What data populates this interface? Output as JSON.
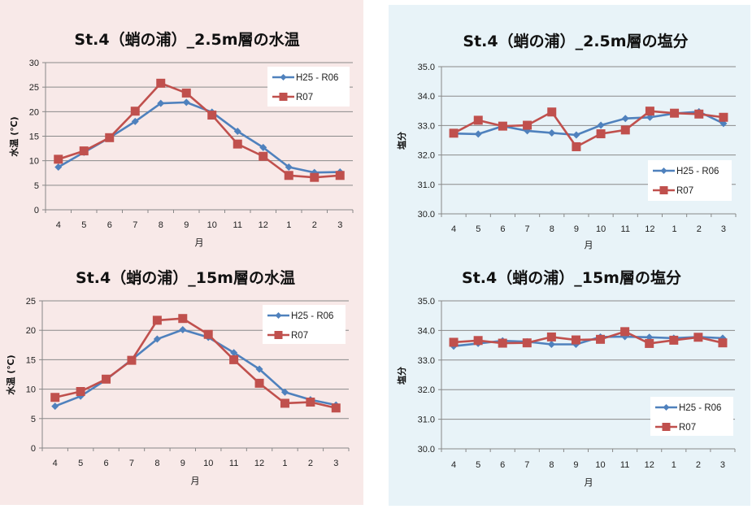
{
  "colors": {
    "series_blue": "#4f81bd",
    "series_red": "#c0504d",
    "panel_temp_bg": "#f8e9e8",
    "panel_sal_bg": "#e8f3f8"
  },
  "chart_data": [
    {
      "id": "temp-2-5m",
      "type": "line",
      "title": "St.4（蛸の浦）_2.5m層の水温",
      "xlabel": "月",
      "ylabel": "水温 (℃)",
      "categories": [
        "4",
        "5",
        "6",
        "7",
        "8",
        "9",
        "10",
        "11",
        "12",
        "1",
        "2",
        "3"
      ],
      "ylim": [
        0,
        30
      ],
      "yticks": [
        0,
        5,
        10,
        15,
        20,
        25,
        30
      ],
      "ytick_labels": [
        "0",
        "5",
        "10",
        "15",
        "20",
        "25",
        "30"
      ],
      "grid": true,
      "legend_position": "top-right",
      "series": [
        {
          "name": "H25 - R06",
          "marker": "diamond",
          "values": [
            8.7,
            11.7,
            14.7,
            18.0,
            21.7,
            21.9,
            19.9,
            16.0,
            12.7,
            8.7,
            7.6,
            7.7
          ]
        },
        {
          "name": "R07",
          "marker": "square",
          "values": [
            10.3,
            12.0,
            14.7,
            20.1,
            25.8,
            23.8,
            19.3,
            13.4,
            10.9,
            7.0,
            6.6,
            7.0
          ]
        }
      ]
    },
    {
      "id": "sal-2-5m",
      "type": "line",
      "title": "St.4（蛸の浦）_2.5m層の塩分",
      "xlabel": "月",
      "ylabel": "塩分",
      "categories": [
        "4",
        "5",
        "6",
        "7",
        "8",
        "9",
        "10",
        "11",
        "12",
        "1",
        "2",
        "3"
      ],
      "ylim": [
        30.0,
        35.0
      ],
      "yticks": [
        30,
        31,
        32,
        33,
        34,
        35
      ],
      "ytick_labels": [
        "30.0",
        "31.0",
        "32.0",
        "33.0",
        "34.0",
        "35.0"
      ],
      "grid": true,
      "legend_position": "bottom-right",
      "series": [
        {
          "name": "H25 - R06",
          "marker": "diamond",
          "values": [
            32.73,
            32.71,
            32.98,
            32.82,
            32.75,
            32.68,
            33.01,
            33.24,
            33.28,
            33.41,
            33.47,
            33.07
          ]
        },
        {
          "name": "R07",
          "marker": "square",
          "values": [
            32.74,
            33.18,
            32.98,
            33.01,
            33.46,
            32.28,
            32.72,
            32.85,
            33.49,
            33.42,
            33.39,
            33.28
          ]
        }
      ]
    },
    {
      "id": "temp-15m",
      "type": "line",
      "title": "St.4（蛸の浦）_15m層の水温",
      "xlabel": "月",
      "ylabel": "水温 (℃)",
      "categories": [
        "4",
        "5",
        "6",
        "7",
        "8",
        "9",
        "10",
        "11",
        "12",
        "1",
        "2",
        "3"
      ],
      "ylim": [
        0,
        25
      ],
      "yticks": [
        0,
        5,
        10,
        15,
        20,
        25
      ],
      "ytick_labels": [
        "0",
        "5",
        "10",
        "15",
        "20",
        "25"
      ],
      "grid": true,
      "legend_position": "top-right",
      "series": [
        {
          "name": "H25 - R06",
          "marker": "diamond",
          "values": [
            7.1,
            8.8,
            11.6,
            15.0,
            18.5,
            20.1,
            18.8,
            16.2,
            13.4,
            9.5,
            8.2,
            7.3
          ]
        },
        {
          "name": "R07",
          "marker": "square",
          "values": [
            8.6,
            9.6,
            11.7,
            14.9,
            21.7,
            22.0,
            19.3,
            15.0,
            11.0,
            7.6,
            7.8,
            6.8
          ]
        }
      ]
    },
    {
      "id": "sal-15m",
      "type": "line",
      "title": "St.4（蛸の浦）_15m層の塩分",
      "xlabel": "月",
      "ylabel": "塩分",
      "categories": [
        "4",
        "5",
        "6",
        "7",
        "8",
        "9",
        "10",
        "11",
        "12",
        "1",
        "2",
        "3"
      ],
      "ylim": [
        30.0,
        35.0
      ],
      "yticks": [
        30,
        31,
        32,
        33,
        34,
        35
      ],
      "ytick_labels": [
        "30.0",
        "31.0",
        "32.0",
        "33.0",
        "34.0",
        "35.0"
      ],
      "grid": true,
      "legend_position": "bottom-right",
      "series": [
        {
          "name": "H25 - R06",
          "marker": "diamond",
          "values": [
            33.47,
            33.56,
            33.65,
            33.62,
            33.53,
            33.53,
            33.78,
            33.79,
            33.77,
            33.74,
            33.78,
            33.74
          ]
        },
        {
          "name": "R07",
          "marker": "square",
          "values": [
            33.6,
            33.66,
            33.57,
            33.58,
            33.78,
            33.68,
            33.7,
            33.96,
            33.56,
            33.67,
            33.77,
            33.58
          ]
        }
      ]
    }
  ]
}
